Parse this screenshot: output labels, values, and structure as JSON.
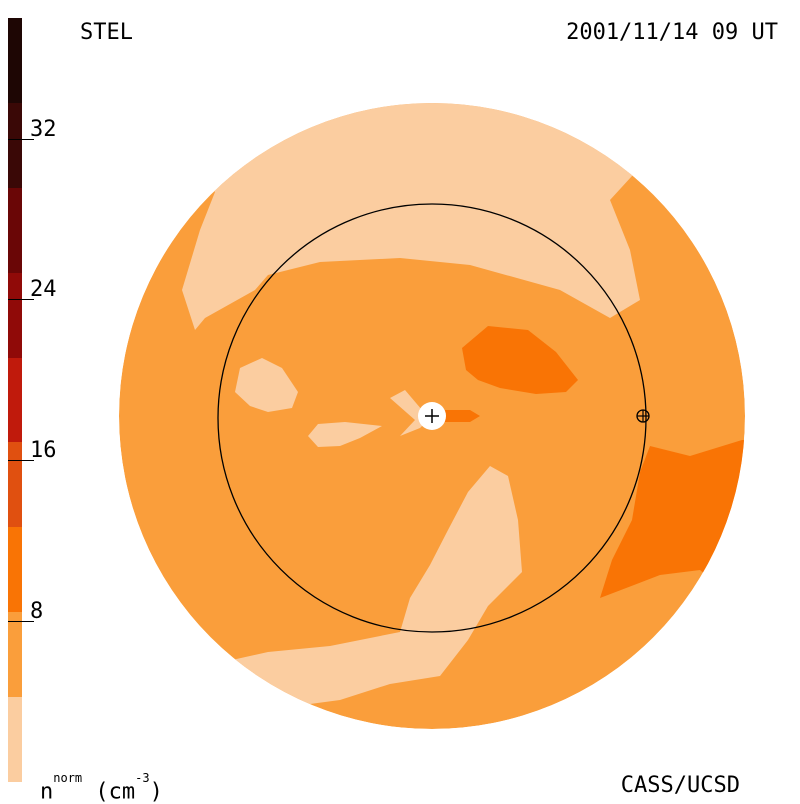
{
  "header": {
    "source": "STEL",
    "timestamp": "2001/11/14 09 UT"
  },
  "footer": {
    "credit": "CASS/UCSD",
    "units_base": "n",
    "units_sup": "norm",
    "units_rest": " (cm",
    "units_exp": "-3",
    "units_close": ")"
  },
  "colorbar": {
    "levels": [
      {
        "color": "#fbcda0"
      },
      {
        "color": "#fa9e3b"
      },
      {
        "color": "#f97405"
      },
      {
        "color": "#e05010"
      },
      {
        "color": "#c01a0c"
      },
      {
        "color": "#900a08"
      },
      {
        "color": "#6a0606"
      },
      {
        "color": "#3a0806"
      },
      {
        "color": "#1e0604"
      }
    ],
    "tick_labels": [
      "8",
      "16",
      "24",
      "32"
    ],
    "min": 0,
    "max": 38
  },
  "map": {
    "colors": {
      "background_fill": "#fa9e3b",
      "low_density": "#fbcda0",
      "high_density": "#f97405",
      "peak_density": "#e05010"
    },
    "markers": {
      "sun": "sun-center-marker",
      "earth": "earth-marker"
    }
  }
}
